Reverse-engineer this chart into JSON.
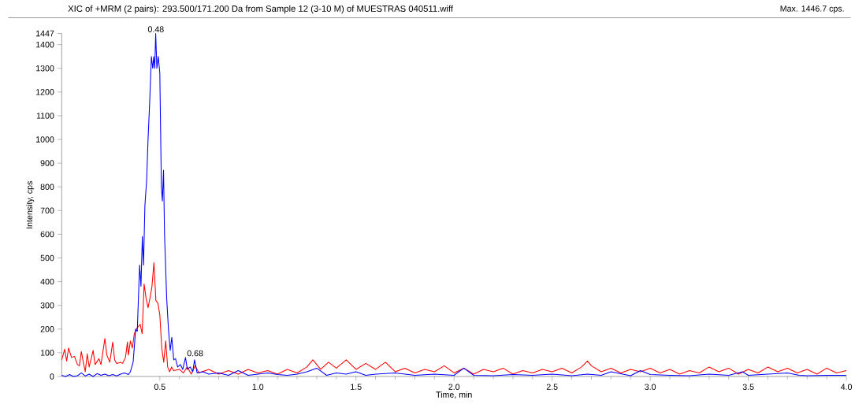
{
  "chart_data": {
    "type": "line",
    "title": "XIC of +MRM (2 pairs): 293.500/171.200 Da from Sample 12 (3-10 M) of MUESTRAS 040511.wiff",
    "xlabel": "Time, min",
    "ylabel": "Intensity, cps",
    "annotations": [
      {
        "text": "0.48",
        "x": 0.48,
        "y": 1447
      },
      {
        "text": "0.68",
        "x": 0.68,
        "y": 80
      },
      "Max. 1446.7 cps."
    ],
    "xlim": [
      0,
      4
    ],
    "ylim": [
      0,
      1447
    ],
    "xticks": [
      0.5,
      {
        "value": 1,
        "label": "1.0"
      },
      1.5,
      {
        "value": 2,
        "label": "2.0"
      },
      2.5,
      {
        "value": 3,
        "label": "3.0"
      },
      3.5,
      {
        "value": 4,
        "label": "4.0"
      }
    ],
    "yticks": [
      0,
      100,
      200,
      300,
      400,
      500,
      600,
      700,
      800,
      900,
      1000,
      1100,
      1200,
      1300,
      1400,
      1447
    ],
    "grid": false,
    "marker": "none",
    "line_style": "solid",
    "series": [
      {
        "color": "#ff0000",
        "x": [
          0,
          0.015,
          0.025,
          0.035,
          0.05,
          0.065,
          0.08,
          0.09,
          0.1,
          0.11,
          0.12,
          0.13,
          0.14,
          0.16,
          0.17,
          0.19,
          0.2,
          0.22,
          0.23,
          0.245,
          0.26,
          0.27,
          0.28,
          0.3,
          0.31,
          0.325,
          0.335,
          0.34,
          0.35,
          0.36,
          0.37,
          0.38,
          0.39,
          0.4,
          0.41,
          0.42,
          0.43,
          0.44,
          0.45,
          0.46,
          0.47,
          0.48,
          0.49,
          0.5,
          0.51,
          0.52,
          0.53,
          0.54,
          0.55,
          0.56,
          0.57,
          0.6,
          0.62,
          0.64,
          0.66,
          0.68,
          0.7,
          0.75,
          0.8,
          0.85,
          0.9,
          0.95,
          1.0,
          1.05,
          1.1,
          1.15,
          1.2,
          1.25,
          1.28,
          1.32,
          1.36,
          1.4,
          1.45,
          1.5,
          1.55,
          1.6,
          1.65,
          1.7,
          1.75,
          1.8,
          1.85,
          1.9,
          1.95,
          2.0,
          2.05,
          2.1,
          2.15,
          2.2,
          2.25,
          2.3,
          2.35,
          2.4,
          2.45,
          2.5,
          2.55,
          2.6,
          2.65,
          2.68,
          2.7,
          2.75,
          2.8,
          2.85,
          2.9,
          2.95,
          3.0,
          3.05,
          3.1,
          3.15,
          3.2,
          3.25,
          3.3,
          3.35,
          3.4,
          3.45,
          3.5,
          3.55,
          3.6,
          3.65,
          3.7,
          3.75,
          3.8,
          3.85,
          3.9,
          3.95,
          4.0
        ],
        "values": [
          70,
          115,
          65,
          120,
          80,
          85,
          50,
          45,
          105,
          60,
          20,
          95,
          40,
          110,
          50,
          75,
          50,
          160,
          90,
          60,
          145,
          70,
          55,
          60,
          55,
          80,
          145,
          90,
          150,
          120,
          180,
          200,
          210,
          220,
          180,
          390,
          330,
          290,
          330,
          380,
          480,
          320,
          310,
          260,
          120,
          60,
          150,
          40,
          20,
          40,
          25,
          30,
          15,
          40,
          10,
          45,
          15,
          30,
          10,
          25,
          10,
          30,
          15,
          25,
          10,
          30,
          15,
          40,
          70,
          30,
          60,
          35,
          70,
          30,
          55,
          30,
          60,
          20,
          35,
          15,
          30,
          20,
          45,
          15,
          35,
          10,
          30,
          20,
          35,
          10,
          25,
          15,
          30,
          20,
          35,
          15,
          40,
          65,
          45,
          20,
          35,
          15,
          30,
          20,
          35,
          15,
          30,
          10,
          25,
          15,
          40,
          20,
          35,
          10,
          30,
          15,
          40,
          20,
          35,
          15,
          30,
          10,
          35,
          15,
          25
        ]
      },
      {
        "color": "#0000ff",
        "x": [
          0,
          0.02,
          0.04,
          0.06,
          0.08,
          0.1,
          0.12,
          0.14,
          0.16,
          0.18,
          0.2,
          0.22,
          0.24,
          0.26,
          0.28,
          0.3,
          0.32,
          0.34,
          0.35,
          0.364,
          0.377,
          0.385,
          0.397,
          0.404,
          0.411,
          0.417,
          0.424,
          0.433,
          0.44,
          0.448,
          0.457,
          0.464,
          0.469,
          0.474,
          0.479,
          0.485,
          0.492,
          0.5,
          0.508,
          0.513,
          0.519,
          0.524,
          0.535,
          0.544,
          0.553,
          0.561,
          0.571,
          0.58,
          0.591,
          0.605,
          0.617,
          0.631,
          0.64,
          0.655,
          0.668,
          0.677,
          0.69,
          0.72,
          0.75,
          0.8,
          0.85,
          0.9,
          0.95,
          1.0,
          1.05,
          1.1,
          1.15,
          1.2,
          1.25,
          1.3,
          1.35,
          1.4,
          1.45,
          1.5,
          1.55,
          1.6,
          1.7,
          1.8,
          1.9,
          2.0,
          2.05,
          2.1,
          2.2,
          2.3,
          2.4,
          2.5,
          2.6,
          2.68,
          2.75,
          2.8,
          2.9,
          2.95,
          3.0,
          3.1,
          3.2,
          3.3,
          3.4,
          3.47,
          3.5,
          3.6,
          3.7,
          3.76,
          3.8,
          3.9,
          4.0
        ],
        "values": [
          5,
          0,
          8,
          0,
          3,
          15,
          2,
          10,
          0,
          12,
          5,
          10,
          3,
          8,
          2,
          10,
          15,
          8,
          20,
          60,
          200,
          190,
          470,
          380,
          590,
          470,
          720,
          830,
          1000,
          1150,
          1350,
          1300,
          1350,
          1300,
          1447,
          1300,
          1350,
          1280,
          800,
          740,
          870,
          600,
          330,
          200,
          110,
          165,
          70,
          75,
          40,
          50,
          30,
          80,
          30,
          40,
          20,
          70,
          15,
          20,
          10,
          15,
          5,
          25,
          5,
          10,
          15,
          8,
          5,
          10,
          20,
          35,
          5,
          15,
          10,
          20,
          5,
          10,
          15,
          5,
          10,
          5,
          35,
          5,
          3,
          8,
          5,
          10,
          3,
          10,
          5,
          20,
          3,
          25,
          8,
          5,
          3,
          10,
          5,
          20,
          5,
          10,
          15,
          5,
          3,
          5,
          5
        ]
      }
    ]
  }
}
